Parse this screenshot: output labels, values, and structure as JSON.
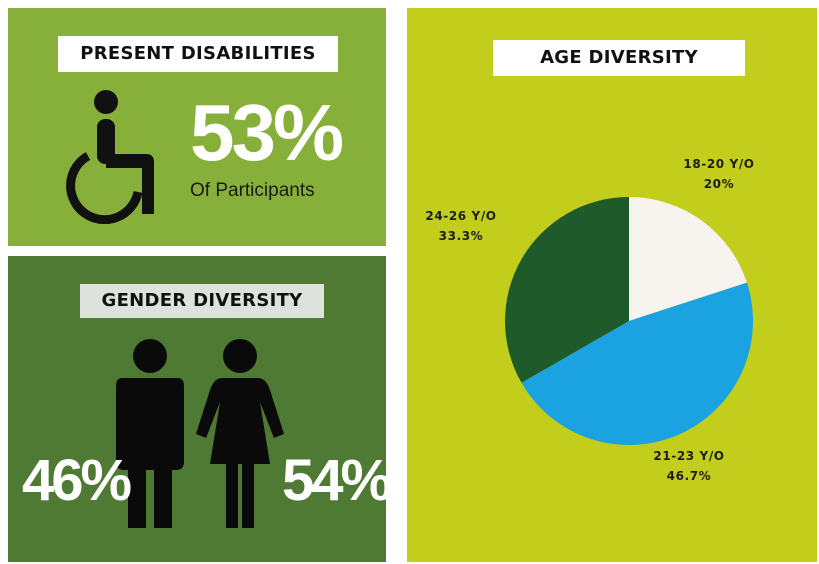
{
  "disabilities": {
    "title": "PRESENT DISABILITIES",
    "percent": "53%",
    "subtitle": "Of Participants",
    "icon": "wheelchair-icon"
  },
  "gender": {
    "title": "GENDER DIVERSITY",
    "male_percent": "46%",
    "female_percent": "54%",
    "icons": [
      "male-figure-icon",
      "female-figure-icon"
    ]
  },
  "age": {
    "title": "AGE DIVERSITY"
  },
  "chart_data": {
    "type": "pie",
    "title": "AGE DIVERSITY",
    "slices": [
      {
        "label": "18-20 Y/O",
        "value": 20,
        "value_label": "20%",
        "color": "#f7f3ee"
      },
      {
        "label": "21-23 Y/O",
        "value": 46.7,
        "value_label": "46.7%",
        "color": "#1aa3e0"
      },
      {
        "label": "24-26 Y/O",
        "value": 33.3,
        "value_label": "33.3%",
        "color": "#1f5a2a"
      }
    ],
    "start_angle_deg": 0,
    "direction": "clockwise"
  },
  "colors": {
    "panel_light_green": "#86b03a",
    "panel_dark_green": "#4f7a33",
    "panel_lime": "#c3cd1b"
  }
}
